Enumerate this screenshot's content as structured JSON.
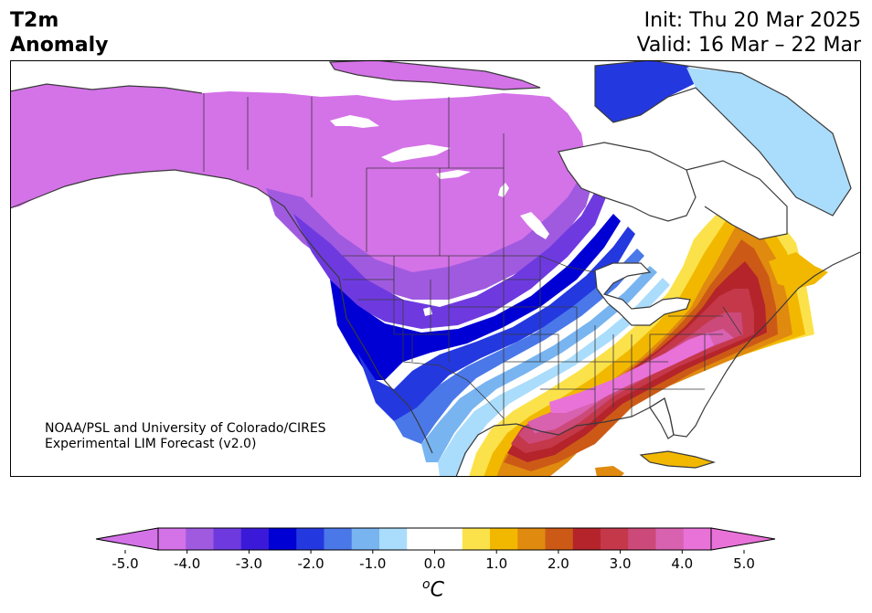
{
  "title": {
    "left_line1": "T2m",
    "left_line2": "Anomaly",
    "init": "Init: Thu 20 Mar 2025",
    "valid": "Valid: 16 Mar – 22 Mar"
  },
  "credit": {
    "line1": "NOAA/PSL and University of Colorado/CIRES",
    "line2": "Experimental LIM Forecast (v2.0)"
  },
  "colorbar": {
    "unit_base": "C",
    "unit_sup": "o",
    "ticks": [
      "-5.0",
      "-4.0",
      "-3.0",
      "-2.0",
      "-1.0",
      "0.0",
      "1.0",
      "2.0",
      "3.0",
      "4.0",
      "5.0"
    ],
    "colors": [
      "#d472e8",
      "#a05ae0",
      "#6e3ae0",
      "#3a1ad8",
      "#0000d4",
      "#2438e0",
      "#4a78e8",
      "#78b4f0",
      "#aadcfc",
      "#ffffff",
      "#ffffff",
      "#fce24a",
      "#f2b800",
      "#e08a10",
      "#cc5a16",
      "#b4242a",
      "#c4384a",
      "#cc4a7a",
      "#d862b0",
      "#e872d8"
    ],
    "under_color": "#d472e8",
    "over_color": "#e872d8"
  },
  "map": {
    "variable": "2 m temperature anomaly",
    "units": "°C",
    "region": "North America",
    "colors": {
      "deep_purple": "#d472e8",
      "violet": "#a05ae0",
      "indigo": "#6e3ae0",
      "blue_dark": "#0000d4",
      "blue": "#2438e0",
      "blue_mid": "#4a78e8",
      "blue_light": "#78b4f0",
      "blue_pale": "#aadcfc",
      "yellow": "#fce24a",
      "gold": "#f2b800",
      "orange": "#e08a10",
      "rust": "#cc5a16",
      "red": "#b4242a",
      "crimson": "#c4384a",
      "rose": "#cc4a7a",
      "pink": "#d862b0",
      "magenta": "#e872d8",
      "coast": "#3a3a3a"
    }
  }
}
